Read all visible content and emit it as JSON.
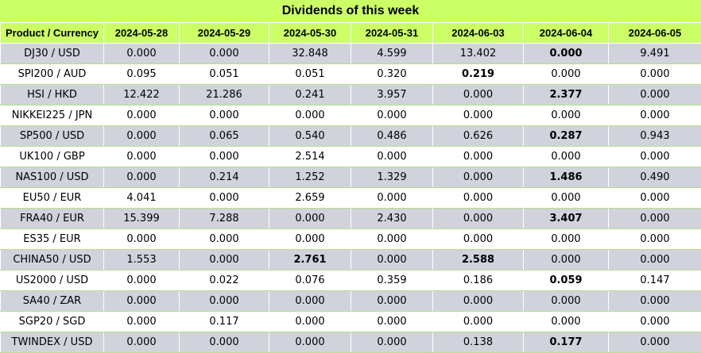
{
  "title": "Dividends of this week",
  "headers": [
    "Product / Currency",
    "2024-05-28",
    "2024-05-29",
    "2024-05-30",
    "2024-05-31",
    "2024-06-03",
    "2024-06-04",
    "2024-06-05"
  ],
  "rows": [
    {
      "product": "DJ30 / USD",
      "values": [
        "0.000",
        "0.000",
        "32.848",
        "4.599",
        "13.402",
        "0.000",
        "9.491"
      ],
      "bold": [
        5
      ]
    },
    {
      "product": "SPI200 / AUD",
      "values": [
        "0.095",
        "0.051",
        "0.051",
        "0.320",
        "0.219",
        "0.000",
        "0.000"
      ],
      "bold": [
        4
      ]
    },
    {
      "product": "HSI / HKD",
      "values": [
        "12.422",
        "21.286",
        "0.241",
        "3.957",
        "0.000",
        "2.377",
        "0.000"
      ],
      "bold": [
        5
      ]
    },
    {
      "product": "NIKKEI225 / JPN",
      "values": [
        "0.000",
        "0.000",
        "0.000",
        "0.000",
        "0.000",
        "0.000",
        "0.000"
      ],
      "bold": []
    },
    {
      "product": "SP500 / USD",
      "values": [
        "0.000",
        "0.065",
        "0.540",
        "0.486",
        "0.626",
        "0.287",
        "0.943"
      ],
      "bold": [
        5
      ]
    },
    {
      "product": "UK100 / GBP",
      "values": [
        "0.000",
        "0.000",
        "2.514",
        "0.000",
        "0.000",
        "0.000",
        "0.000"
      ],
      "bold": []
    },
    {
      "product": "NAS100 / USD",
      "values": [
        "0.000",
        "0.214",
        "1.252",
        "1.329",
        "0.000",
        "1.486",
        "0.490"
      ],
      "bold": [
        5
      ]
    },
    {
      "product": "EU50 / EUR",
      "values": [
        "4.041",
        "0.000",
        "2.659",
        "0.000",
        "0.000",
        "0.000",
        "0.000"
      ],
      "bold": []
    },
    {
      "product": "FRA40 / EUR",
      "values": [
        "15.399",
        "7.288",
        "0.000",
        "2.430",
        "0.000",
        "3.407",
        "0.000"
      ],
      "bold": [
        5
      ]
    },
    {
      "product": "ES35 / EUR",
      "values": [
        "0.000",
        "0.000",
        "0.000",
        "0.000",
        "0.000",
        "0.000",
        "0.000"
      ],
      "bold": []
    },
    {
      "product": "CHINA50 / USD",
      "values": [
        "1.553",
        "0.000",
        "2.761",
        "0.000",
        "2.588",
        "0.000",
        "0.000"
      ],
      "bold": [
        2,
        4
      ]
    },
    {
      "product": "US2000 / USD",
      "values": [
        "0.000",
        "0.022",
        "0.076",
        "0.359",
        "0.186",
        "0.059",
        "0.147"
      ],
      "bold": [
        5
      ]
    },
    {
      "product": "SA40 / ZAR",
      "values": [
        "0.000",
        "0.000",
        "0.000",
        "0.000",
        "0.000",
        "0.000",
        "0.000"
      ],
      "bold": []
    },
    {
      "product": "SGP20 / SGD",
      "values": [
        "0.000",
        "0.117",
        "0.000",
        "0.000",
        "0.000",
        "0.000",
        "0.000"
      ],
      "bold": []
    },
    {
      "product": "TWINDEX / USD",
      "values": [
        "0.000",
        "0.000",
        "0.000",
        "0.000",
        "0.138",
        "0.177",
        "0.000"
      ],
      "bold": [
        5
      ]
    }
  ]
}
